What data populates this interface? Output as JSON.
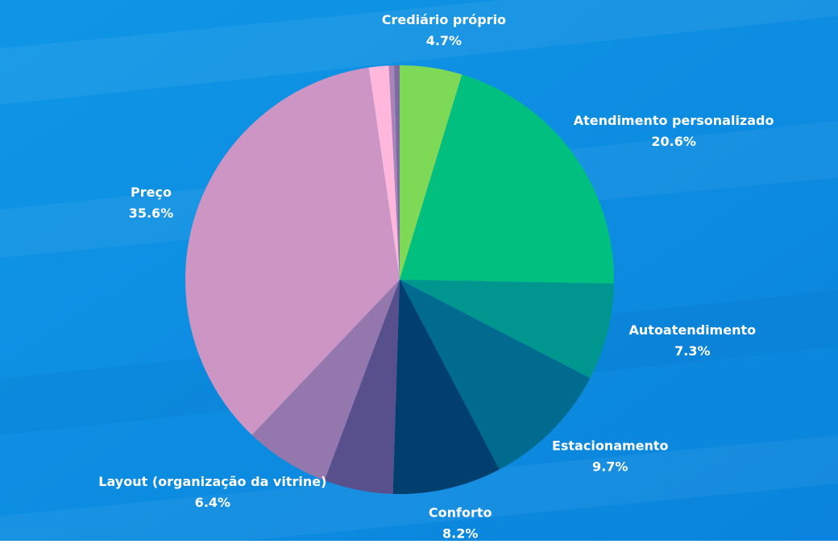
{
  "chart_data": {
    "type": "pie",
    "categories": [
      "Crediário próprio",
      "Atendimento personalizado",
      "Autoatendimento",
      "Estacionamento",
      "Conforto",
      null,
      "Layout (organização da vitrine)",
      "Preço",
      null,
      null,
      null
    ],
    "values": [
      4.7,
      20.6,
      7.3,
      9.7,
      8.2,
      5.2,
      6.4,
      35.6,
      1.5,
      0.4,
      0.4
    ],
    "value_labels": [
      "4.7%",
      "20.6%",
      "7.3%",
      "9.7%",
      "8.2%",
      null,
      "6.4%",
      "35.6%",
      null,
      null,
      null
    ],
    "colors": [
      "#7ed957",
      "#00bf7f",
      "#009690",
      "#006b8f",
      "#003f6e",
      "#58508d",
      "#9478ad",
      "#cc95c4",
      "#ffb7db",
      "#a884b8",
      "#7c6aa0"
    ]
  }
}
